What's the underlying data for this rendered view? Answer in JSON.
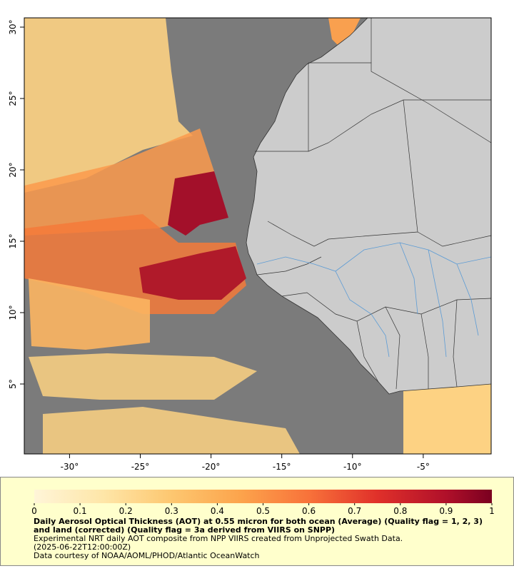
{
  "map": {
    "xlim": [
      -33.2,
      -0.2
    ],
    "ylim": [
      0.1,
      30.65
    ],
    "xticks": [
      {
        "value": -30,
        "label": "-30°"
      },
      {
        "value": -25,
        "label": "-25°"
      },
      {
        "value": -20,
        "label": "-20°"
      },
      {
        "value": -15,
        "label": "-15°"
      },
      {
        "value": -10,
        "label": "-10°"
      },
      {
        "value": -5,
        "label": "-5°"
      }
    ],
    "yticks": [
      {
        "value": 5,
        "label": "5°"
      },
      {
        "value": 10,
        "label": "10°"
      },
      {
        "value": 15,
        "label": "15°"
      },
      {
        "value": 20,
        "label": "20°"
      },
      {
        "value": 25,
        "label": "25°"
      },
      {
        "value": 30,
        "label": "30°"
      }
    ]
  },
  "colorbar": {
    "lim": [
      0,
      1
    ],
    "ticks": [
      0,
      0.1,
      0.2,
      0.3,
      0.4,
      0.5,
      0.6,
      0.7,
      0.8,
      0.9,
      1
    ]
  },
  "caption": {
    "title": "Daily Aerosol Optical Thickness (AOT) at 0.55 micron for both ocean (Average) (Quality flag = 1, 2, 3) and land (corrected) (Quality flag = 3a derived from VIIRS on SNPP)",
    "line1": "Experimental NRT daily AOT composite from NPP VIIRS created from Unprojected Swath Data.",
    "line2": "(2025-06-22T12:00:00Z)",
    "line3": "Data courtesy of NOAA/AOML/PHOD/Atlantic OceanWatch"
  }
}
